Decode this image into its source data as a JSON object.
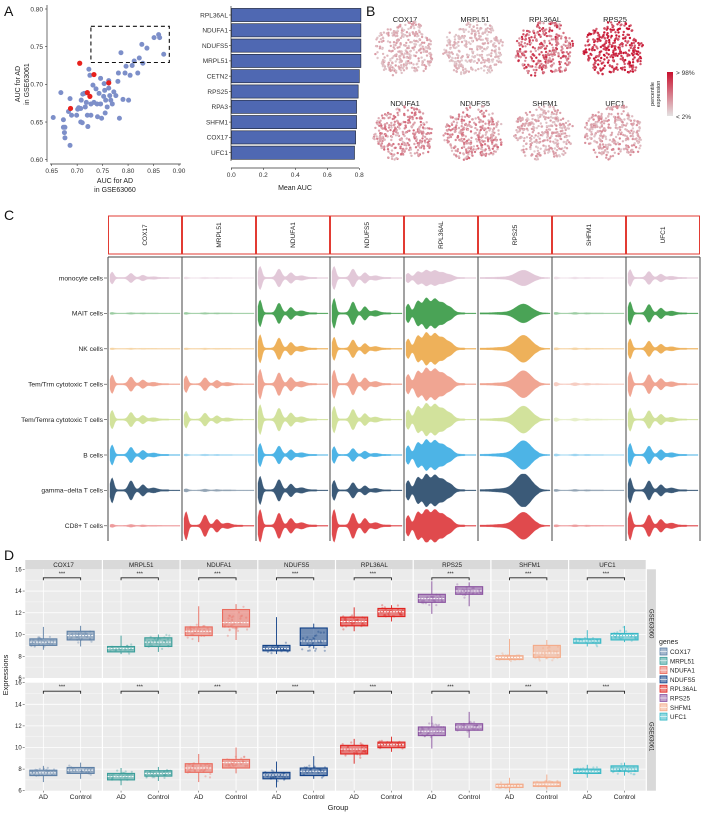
{
  "panels": {
    "A": "A",
    "B": "B",
    "C": "C",
    "D": "D"
  },
  "chart_data": [
    {
      "id": "scatter",
      "type": "scatter",
      "xlabel": [
        "AUC for AD",
        "in GSE63060"
      ],
      "ylabel": [
        "AUC for AD",
        "in GSE63061"
      ],
      "xlim": [
        0.65,
        0.9
      ],
      "ylim": [
        0.6,
        0.8
      ],
      "xticks": [
        "0.65",
        "0.70",
        "0.75",
        "0.80",
        "0.85",
        "0.90"
      ],
      "yticks": [
        "0.60",
        "0.65",
        "0.70",
        "0.75",
        "0.80"
      ],
      "colors": {
        "points": "#7d8fc9",
        "highlight": "#e8211c"
      },
      "highlight_box": {
        "x": [
          0.727,
          0.881
        ],
        "y": [
          0.729,
          0.777
        ]
      },
      "points": [
        [
          0.653,
          0.656
        ],
        [
          0.668,
          0.689
        ],
        [
          0.673,
          0.653
        ],
        [
          0.673,
          0.643
        ],
        [
          0.676,
          0.643
        ],
        [
          0.675,
          0.636
        ],
        [
          0.676,
          0.629
        ],
        [
          0.686,
          0.681
        ],
        [
          0.686,
          0.619
        ],
        [
          0.683,
          0.664
        ],
        [
          0.689,
          0.659
        ],
        [
          0.699,
          0.659
        ],
        [
          0.701,
          0.667
        ],
        [
          0.707,
          0.668
        ],
        [
          0.707,
          0.65
        ],
        [
          0.71,
          0.649
        ],
        [
          0.708,
          0.679
        ],
        [
          0.711,
          0.687
        ],
        [
          0.714,
          0.688
        ],
        [
          0.716,
          0.67
        ],
        [
          0.72,
          0.659
        ],
        [
          0.721,
          0.644
        ],
        [
          0.723,
          0.72
        ],
        [
          0.725,
          0.712
        ],
        [
          0.727,
          0.674
        ],
        [
          0.727,
          0.659
        ],
        [
          0.731,
          0.699
        ],
        [
          0.737,
          0.694
        ],
        [
          0.739,
          0.674
        ],
        [
          0.74,
          0.657
        ],
        [
          0.743,
          0.688
        ],
        [
          0.746,
          0.708
        ],
        [
          0.746,
          0.674
        ],
        [
          0.748,
          0.655
        ],
        [
          0.753,
          0.701
        ],
        [
          0.754,
          0.692
        ],
        [
          0.755,
          0.662
        ],
        [
          0.756,
          0.679
        ],
        [
          0.759,
          0.67
        ],
        [
          0.762,
          0.705
        ],
        [
          0.762,
          0.695
        ],
        [
          0.764,
          0.685
        ],
        [
          0.766,
          0.679
        ],
        [
          0.769,
          0.674
        ],
        [
          0.772,
          0.69
        ],
        [
          0.776,
          0.685
        ],
        [
          0.78,
          0.704
        ],
        [
          0.781,
          0.715
        ],
        [
          0.783,
          0.655
        ],
        [
          0.786,
          0.742
        ],
        [
          0.79,
          0.68
        ],
        [
          0.794,
          0.715
        ],
        [
          0.796,
          0.724
        ],
        [
          0.801,
          0.679
        ],
        [
          0.804,
          0.712
        ],
        [
          0.808,
          0.725
        ],
        [
          0.812,
          0.731
        ],
        [
          0.819,
          0.715
        ],
        [
          0.822,
          0.735
        ],
        [
          0.827,
          0.753
        ],
        [
          0.829,
          0.728
        ],
        [
          0.837,
          0.748
        ],
        [
          0.851,
          0.762
        ],
        [
          0.86,
          0.766
        ],
        [
          0.862,
          0.762
        ],
        [
          0.87,
          0.74
        ],
        [
          0.733,
          0.676
        ],
        [
          0.752,
          0.684
        ],
        [
          0.718,
          0.676
        ],
        [
          0.703,
          0.669
        ]
      ],
      "highlighted_points": [
        [
          0.705,
          0.728
        ],
        [
          0.733,
          0.713
        ],
        [
          0.72,
          0.689
        ],
        [
          0.725,
          0.684
        ],
        [
          0.687,
          0.668
        ],
        [
          0.762,
          0.702
        ]
      ]
    },
    {
      "id": "bar",
      "type": "bar",
      "orientation": "horizontal",
      "categories": [
        "RPL36AL",
        "NDUFA1",
        "NDUFS5",
        "MRPL51",
        "CETN2",
        "RPS25",
        "RPA3",
        "SHFM1",
        "COX17",
        "UFC1"
      ],
      "values": [
        0.81,
        0.81,
        0.81,
        0.81,
        0.8,
        0.793,
        0.783,
        0.783,
        0.777,
        0.77
      ],
      "xlabel": "Mean AUC",
      "xlim": [
        0,
        0.8
      ],
      "xticks": [
        "0.0",
        "0.2",
        "0.4",
        "0.6",
        "0.8"
      ],
      "color": "#4f68b2"
    },
    {
      "id": "tsne",
      "type": "scatter",
      "genes": [
        "COX17",
        "MRPL51",
        "RPL36AL",
        "RPS25",
        "NDUFA1",
        "NDUFS5",
        "SHFM1",
        "UFC1"
      ],
      "expression_level": [
        0.28,
        0.22,
        0.7,
        0.97,
        0.45,
        0.45,
        0.3,
        0.35
      ],
      "legend": {
        "title": [
          "percentile",
          "expression"
        ],
        "high": "> 98%",
        "low": "< 2%",
        "high_color": "#c8102e",
        "low_color": "#e4e2e2"
      }
    },
    {
      "id": "violin",
      "type": "violin",
      "genes": [
        "COX17",
        "MRPL51",
        "NDUFA1",
        "NDUFS5",
        "RPL36AL",
        "RPS25",
        "SHFM1",
        "UFC1"
      ],
      "cell_types": [
        "monocyte cells",
        "MAIT cells",
        "NK cells",
        "Tem/Trm cytotoxic T cells",
        "Tem/Temra cytotoxic T cells",
        "B cells",
        "gamma−delta T cells",
        "CD8+ T cells"
      ],
      "cell_colors": [
        "#e2c8d8",
        "#4aa356",
        "#eeb15a",
        "#f0a592",
        "#d2e29c",
        "#4db4e6",
        "#3b5a78",
        "#e04a4d"
      ],
      "relative_density": [
        [
          0.35,
          0.04,
          0.7,
          0.7,
          0.45,
          0.45,
          0.05,
          0.5
        ],
        [
          0.04,
          0.04,
          0.8,
          0.9,
          0.9,
          0.55,
          0.05,
          0.7
        ],
        [
          0.03,
          0.03,
          0.85,
          0.7,
          0.95,
          0.8,
          0.05,
          0.6
        ],
        [
          0.55,
          0.5,
          0.9,
          0.85,
          0.95,
          0.8,
          0.1,
          0.75
        ],
        [
          0.55,
          0.5,
          0.9,
          0.8,
          0.95,
          0.8,
          0.1,
          0.7
        ],
        [
          0.6,
          0.04,
          0.7,
          0.5,
          0.9,
          0.85,
          0.05,
          0.7
        ],
        [
          0.75,
          0.08,
          0.85,
          0.6,
          0.95,
          1.0,
          0.05,
          0.75
        ],
        [
          0.08,
          0.85,
          1.0,
          1.0,
          1.0,
          0.8,
          0.05,
          0.85
        ]
      ]
    },
    {
      "id": "boxplot",
      "type": "box",
      "genes": [
        "COX17",
        "MRPL51",
        "NDUFA1",
        "NDUFS5",
        "RPL36AL",
        "RPS25",
        "SHFM1",
        "UFC1"
      ],
      "gene_colors": [
        "#5d7fa5",
        "#3a9e9a",
        "#ea6b5e",
        "#0f3f86",
        "#e0231f",
        "#8a52a0",
        "#f4aa88",
        "#35b8c6"
      ],
      "datasets": [
        "GSE63060",
        "GSE63061"
      ],
      "groups": [
        "AD",
        "Control"
      ],
      "significance": "***",
      "xlabel": "Group",
      "ylabel": "Expressions",
      "ylim": [
        6,
        16
      ],
      "yticks": [
        "6",
        "8",
        "10",
        "12",
        "14",
        "16"
      ],
      "legend_title": "genes",
      "stats_format": [
        "q1",
        "median",
        "q3",
        "whisker_low",
        "whisker_high"
      ],
      "stats": {
        "GSE63060": [
          [
            [
              9.0,
              9.3,
              9.6,
              8.6,
              10.7
            ],
            [
              9.5,
              9.9,
              10.3,
              8.9,
              10.8
            ]
          ],
          [
            [
              8.4,
              8.7,
              8.9,
              8.2,
              9.9
            ],
            [
              8.9,
              9.3,
              9.7,
              8.4,
              10.0
            ]
          ],
          [
            [
              9.9,
              10.3,
              10.7,
              9.3,
              12.6
            ],
            [
              10.7,
              11.1,
              12.3,
              9.5,
              12.8
            ]
          ],
          [
            [
              8.5,
              8.7,
              9.0,
              8.2,
              11.6
            ],
            [
              9.0,
              9.4,
              10.6,
              8.7,
              11.0
            ]
          ],
          [
            [
              10.8,
              11.2,
              11.6,
              10.3,
              12.5
            ],
            [
              11.65,
              12.1,
              12.4,
              11.2,
              12.7
            ]
          ],
          [
            [
              12.96,
              13.3,
              13.7,
              11.9,
              14.9
            ],
            [
              13.7,
              14.0,
              14.4,
              12.6,
              14.8
            ]
          ],
          [
            [
              7.7,
              7.9,
              8.05,
              7.6,
              9.6
            ],
            [
              7.9,
              8.3,
              9.0,
              7.8,
              9.5
            ]
          ],
          [
            [
              9.2,
              9.4,
              9.6,
              8.9,
              10.4
            ],
            [
              9.5,
              9.9,
              10.1,
              9.3,
              10.8
            ]
          ]
        ],
        "GSE63061": [
          [
            [
              7.4,
              7.65,
              7.9,
              6.8,
              8.3
            ],
            [
              7.6,
              7.9,
              8.15,
              7.1,
              8.6
            ]
          ],
          [
            [
              7.0,
              7.3,
              7.6,
              6.5,
              8.1
            ],
            [
              7.35,
              7.6,
              7.85,
              6.9,
              8.2
            ]
          ],
          [
            [
              7.7,
              8.1,
              8.5,
              6.8,
              9.4
            ],
            [
              8.1,
              8.6,
              8.9,
              7.6,
              10.0
            ]
          ],
          [
            [
              7.1,
              7.45,
              7.7,
              6.3,
              8.7
            ],
            [
              7.4,
              7.8,
              8.1,
              7.1,
              9.2
            ]
          ],
          [
            [
              9.4,
              9.85,
              10.2,
              8.5,
              10.8
            ],
            [
              9.98,
              10.25,
              10.5,
              9.6,
              11.0
            ]
          ],
          [
            [
              11.1,
              11.5,
              11.9,
              9.9,
              12.9
            ],
            [
              11.6,
              11.9,
              12.2,
              10.9,
              13.3
            ]
          ],
          [
            [
              6.3,
              6.45,
              6.6,
              6.0,
              7.2
            ],
            [
              6.4,
              6.6,
              6.8,
              6.1,
              7.5
            ]
          ],
          [
            [
              7.6,
              7.8,
              8.0,
              7.2,
              8.4
            ],
            [
              7.8,
              8.0,
              8.3,
              7.4,
              8.6
            ]
          ]
        ]
      }
    }
  ]
}
